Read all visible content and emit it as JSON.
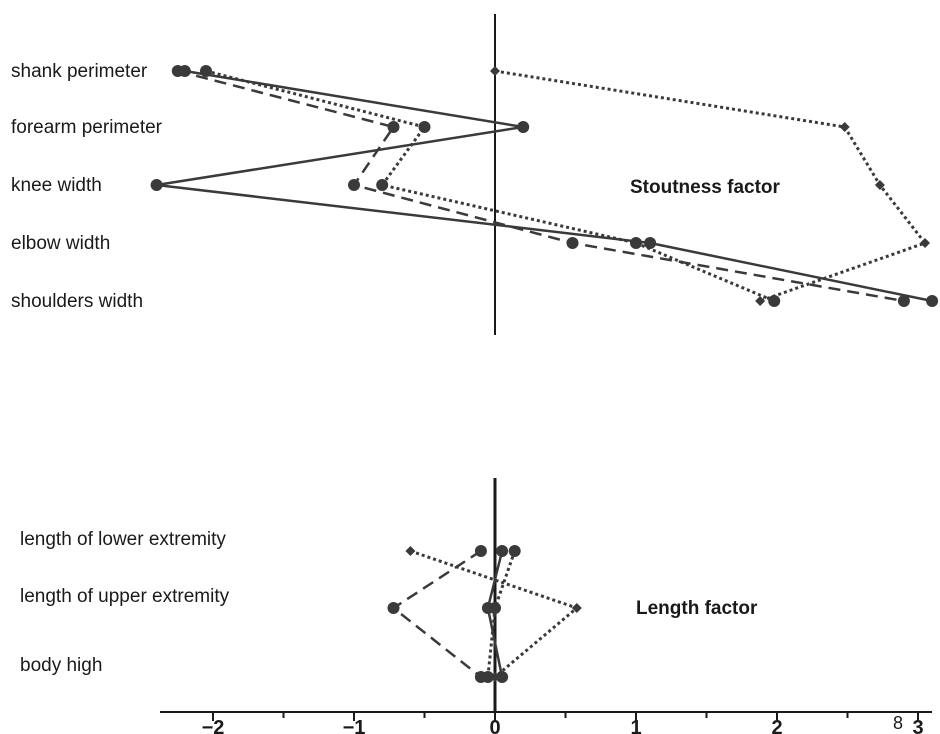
{
  "colors": {
    "ink": "#3a3a3a",
    "axis": "#1a1a1a",
    "background": "#ffffff"
  },
  "chart_data": {
    "type": "line",
    "orientation": "horizontal",
    "xlim": [
      -2.35,
      3.1
    ],
    "x_ticks": [
      "−2",
      "−1",
      "0",
      "1",
      "2",
      "3"
    ],
    "x_tick_values": [
      -2,
      -1,
      0,
      1,
      2,
      3
    ],
    "minor_tick_step": 0.5,
    "stray_label": "8",
    "grid": false,
    "legend": "none",
    "panels": [
      {
        "factor_label": "Stoutness factor",
        "categories": [
          "shank perimeter",
          "forearm perimeter",
          "knee width",
          "elbow width",
          "shoulders width"
        ],
        "series": [
          {
            "style": "solid",
            "marker": "circle",
            "x": [
              -2.2,
              0.2,
              -2.4,
              1.1,
              3.1
            ]
          },
          {
            "style": "dashed",
            "marker": "circle",
            "x": [
              -2.25,
              -0.72,
              -1.0,
              0.55,
              2.9
            ]
          },
          {
            "style": "dotted",
            "marker": "circle",
            "x": [
              -2.05,
              -0.5,
              -0.8,
              1.0,
              1.98
            ]
          },
          {
            "style": "dotted",
            "marker": "diamond",
            "x": [
              0.0,
              2.48,
              2.73,
              3.05,
              1.88
            ]
          }
        ]
      },
      {
        "factor_label": "Length factor",
        "categories": [
          "length of lower extremity",
          "length of upper extremity",
          "body high"
        ],
        "series": [
          {
            "style": "solid",
            "marker": "circle",
            "x": [
              0.05,
              -0.05,
              0.05
            ]
          },
          {
            "style": "dashed",
            "marker": "circle",
            "x": [
              -0.1,
              -0.72,
              -0.1
            ]
          },
          {
            "style": "dotted",
            "marker": "circle",
            "x": [
              0.14,
              0.0,
              -0.05
            ]
          },
          {
            "style": "dotted",
            "marker": "diamond",
            "x": [
              -0.6,
              0.58,
              0.0
            ]
          }
        ]
      }
    ]
  }
}
